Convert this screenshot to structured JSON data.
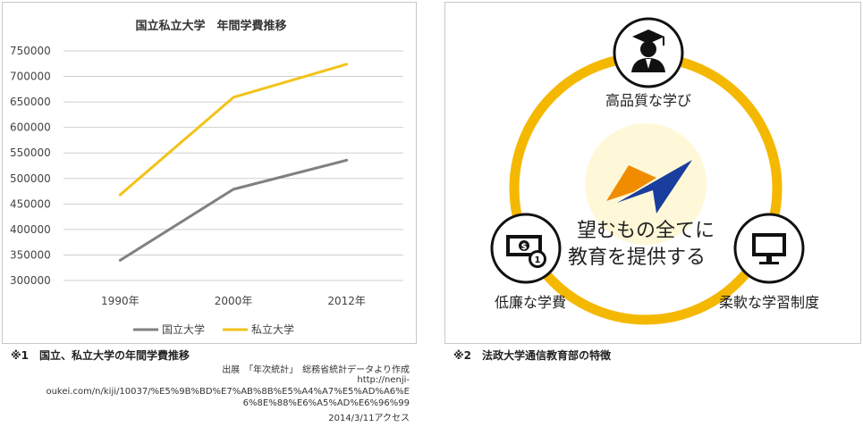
{
  "chart_data": {
    "type": "line",
    "title": "国立私立大学　年間学費推移",
    "categories": [
      "1990年",
      "2000年",
      "2012年"
    ],
    "series": [
      {
        "name": "国立大学",
        "values": [
          339600,
          478800,
          535800
        ],
        "color": "#808080"
      },
      {
        "name": "私立大学",
        "values": [
          468000,
          659000,
          724000
        ],
        "color": "#f2c31a"
      }
    ],
    "ylim": [
      300000,
      750000
    ],
    "yticks": [
      "300000",
      "350000",
      "400000",
      "450000",
      "500000",
      "550000",
      "600000",
      "650000",
      "700000",
      "750000"
    ],
    "grid": true,
    "legend": "bottom"
  },
  "captions": {
    "chart": "※1　国立、私立大学の年間学費推移",
    "feature": "※2　法政大学通信教育部の特徴"
  },
  "source": {
    "line1": "出展　「年次統計」　総務省統計データより作成",
    "url_part1": "http://nenji-",
    "url_part2": "oukei.com/n/kiji/10037/%E5%9B%BD%E7%AB%8B%E5%A4%A7%E5%AD%A6%E",
    "url_part3": "6%8E%88%E6%A5%AD%E6%96%99",
    "accessed": "2014/3/11アクセス"
  },
  "features": {
    "top": "高品質な学び",
    "left": "低廉な学費",
    "right": "柔軟な学習制度",
    "center_line1": "望むもの全てに",
    "center_line2": "教育を提供する"
  },
  "icons": {
    "top": "graduate-icon",
    "left": "money-icon",
    "right": "monitor-icon"
  },
  "colors": {
    "ring": "#f5b800",
    "logo_orange": "#f08c00",
    "logo_blue": "#1a3e9e"
  }
}
